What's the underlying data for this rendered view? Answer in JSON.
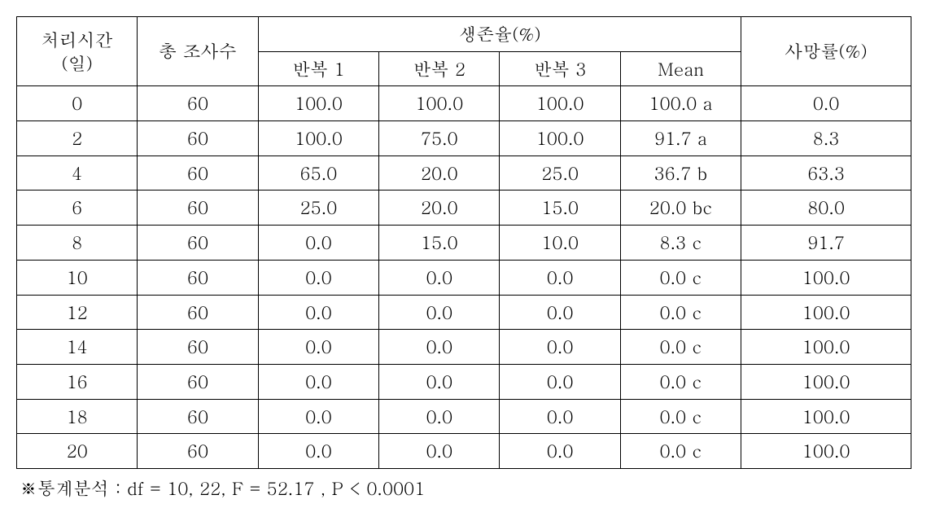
{
  "table": {
    "border_color": "#000000",
    "background_color": "#ffffff",
    "font_size": 22,
    "header": {
      "col1_line1": "처리시간",
      "col1_line2": "(일)",
      "col2": "총 조사수",
      "group": "생존율(%)",
      "sub1": "반복 1",
      "sub2": "반복 2",
      "sub3": "반복 3",
      "sub4": "Mean",
      "col7": "사망률(%)"
    },
    "col_widths_pct": [
      13.5,
      13.5,
      13.5,
      13.5,
      13.5,
      13.5,
      19
    ],
    "rows": [
      {
        "time": "0",
        "n": "60",
        "r1": "100.0",
        "r2": "100.0",
        "r3": "100.0",
        "mean": "100.0 a",
        "mort": "0.0"
      },
      {
        "time": "2",
        "n": "60",
        "r1": "100.0",
        "r2": "75.0",
        "r3": "100.0",
        "mean": "91.7 a",
        "mort": "8.3"
      },
      {
        "time": "4",
        "n": "60",
        "r1": "65.0",
        "r2": "20.0",
        "r3": "25.0",
        "mean": "36.7 b",
        "mort": "63.3"
      },
      {
        "time": "6",
        "n": "60",
        "r1": "25.0",
        "r2": "20.0",
        "r3": "15.0",
        "mean": "20.0 bc",
        "mort": "80.0"
      },
      {
        "time": "8",
        "n": "60",
        "r1": "0.0",
        "r2": "15.0",
        "r3": "10.0",
        "mean": "8.3 c",
        "mort": "91.7"
      },
      {
        "time": "10",
        "n": "60",
        "r1": "0.0",
        "r2": "0.0",
        "r3": "0.0",
        "mean": "0.0 c",
        "mort": "100.0"
      },
      {
        "time": "12",
        "n": "60",
        "r1": "0.0",
        "r2": "0.0",
        "r3": "0.0",
        "mean": "0.0 c",
        "mort": "100.0"
      },
      {
        "time": "14",
        "n": "60",
        "r1": "0.0",
        "r2": "0.0",
        "r3": "0.0",
        "mean": "0.0 c",
        "mort": "100.0"
      },
      {
        "time": "16",
        "n": "60",
        "r1": "0.0",
        "r2": "0.0",
        "r3": "0.0",
        "mean": "0.0 c",
        "mort": "100.0"
      },
      {
        "time": "18",
        "n": "60",
        "r1": "0.0",
        "r2": "0.0",
        "r3": "0.0",
        "mean": "0.0 c",
        "mort": "100.0"
      },
      {
        "time": "20",
        "n": "60",
        "r1": "0.0",
        "r2": "0.0",
        "r3": "0.0",
        "mean": "0.0 c",
        "mort": "100.0"
      }
    ]
  },
  "footnote": "※통계분석 :  df = 10, 22, F = 52.17 , P < 0.0001"
}
